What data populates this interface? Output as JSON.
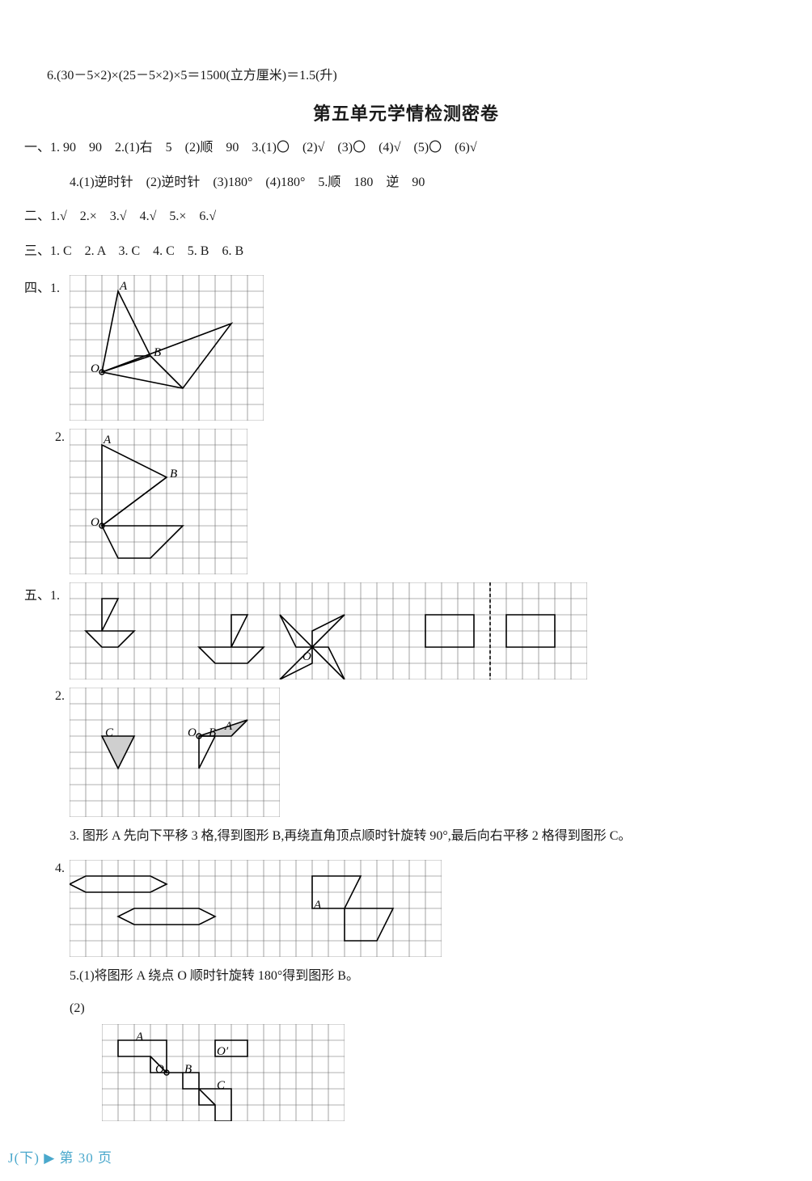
{
  "topline": "6.(30－5×2)×(25－5×2)×5＝1500(立方厘米)＝1.5(升)",
  "title": "第五单元学情检测密卷",
  "sec1": {
    "line1": "一、1. 90　90　2.(1)右　5　(2)顺　90　3.(1)〇　(2)√　(3)〇　(4)√　(5)〇　(6)√",
    "line2": "4.(1)逆时针　(2)逆时针　(3)180°　(4)180°　5.顺　180　逆　90"
  },
  "sec2": "二、1.√　2.×　3.√　4.√　5.×　6.√",
  "sec3": "三、1. C　2. A　3. C　4. C　5. B　6. B",
  "sec4": {
    "label": "四、1.",
    "sub2": "2."
  },
  "sec5": {
    "label": "五、1.",
    "sub2": "2.",
    "line3": "3. 图形 A 先向下平移 3 格,得到图形 B,再绕直角顶点顺时针旋转 90°,最后向右平移 2 格得到图形 C。",
    "sub4": "4.",
    "line5": "5.(1)将图形 A 绕点 O 顺时针旋转 180°得到图形 B。",
    "sub52": "(2)"
  },
  "labels": {
    "A": "A",
    "B": "B",
    "C": "C",
    "O": "O",
    "Op": "O′"
  },
  "footer": "J(下) ▶ 第 30 页",
  "style": {
    "grid_stroke": "#666666",
    "grid_stroke_w": 0.6,
    "shape_stroke": "#000000",
    "shape_stroke_w": 1.6,
    "fill_gray": "#cfcfcf",
    "cell": 20,
    "label_font": "italic 15px 'Times New Roman', serif"
  },
  "grids": {
    "g41": {
      "cols": 12,
      "rows": 9
    },
    "g42": {
      "cols": 11,
      "rows": 9
    },
    "g51": {
      "cols": 32,
      "rows": 6
    },
    "g52": {
      "cols": 13,
      "rows": 8
    },
    "g54": {
      "cols": 23,
      "rows": 6
    },
    "g552": {
      "cols": 15,
      "rows": 6
    }
  }
}
